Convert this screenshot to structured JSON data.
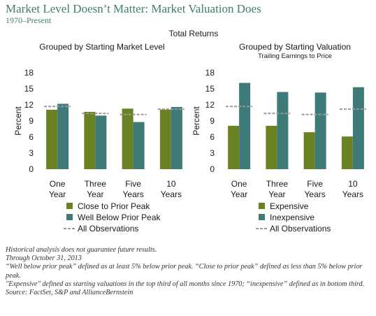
{
  "header": {
    "title": "Market Level Doesn’t Matter: Market Valuation Does",
    "subtitle": "1970–Present"
  },
  "chart_data": [
    {
      "type": "bar",
      "suptitle": "Total Returns",
      "title": "Grouped by Starting Market Level",
      "subtitle": "",
      "ylabel": "Percent",
      "ylim": [
        0,
        18
      ],
      "yticks": [
        0,
        3,
        6,
        9,
        12,
        15,
        18
      ],
      "categories": [
        [
          "One",
          "Year"
        ],
        [
          "Three",
          "Year"
        ],
        [
          "Five",
          "Years"
        ],
        [
          "10",
          "Years"
        ]
      ],
      "series": [
        {
          "name": "Close to Prior Peak",
          "color": "#6b8222",
          "values": [
            11.1,
            10.7,
            11.3,
            11.1
          ]
        },
        {
          "name": "Well Below Prior Peak",
          "color": "#3d7a78",
          "values": [
            12.2,
            10.0,
            8.8,
            11.6
          ]
        }
      ],
      "reference": {
        "name": "All Observations",
        "color": "#999999",
        "values": [
          11.7,
          10.4,
          10.2,
          11.2
        ]
      }
    },
    {
      "type": "bar",
      "title": "Grouped by Starting Valuation",
      "subtitle": "Trailing Earnings to Price",
      "ylabel": "Percent",
      "ylim": [
        0,
        18
      ],
      "yticks": [
        0,
        3,
        6,
        9,
        12,
        15,
        18
      ],
      "categories": [
        [
          "One",
          "Year"
        ],
        [
          "Three",
          "Year"
        ],
        [
          "Five",
          "Years"
        ],
        [
          "10",
          "Years"
        ]
      ],
      "series": [
        {
          "name": "Expensive",
          "color": "#6b8222",
          "values": [
            8.1,
            8.1,
            6.9,
            6.1
          ]
        },
        {
          "name": "Inexpensive",
          "color": "#3d7a78",
          "values": [
            16.1,
            14.4,
            14.3,
            15.3
          ]
        }
      ],
      "reference": {
        "name": "All Observations",
        "color": "#999999",
        "values": [
          11.7,
          10.4,
          10.2,
          11.2
        ]
      }
    }
  ],
  "notes": [
    "Historical analysis does not guarantee future results.",
    "Through October 31, 2013",
    "“Well below prior peak” defined as at least 5% below prior peak. “Close to prior peak” defined as less than 5% below prior peak.",
    "\"Expensive\" defined as starting valuations in the top third of all months since 1970; “inexpensive” defined as in bottom third.",
    "Source: FactSet, S&P and AllianceBernstein"
  ]
}
